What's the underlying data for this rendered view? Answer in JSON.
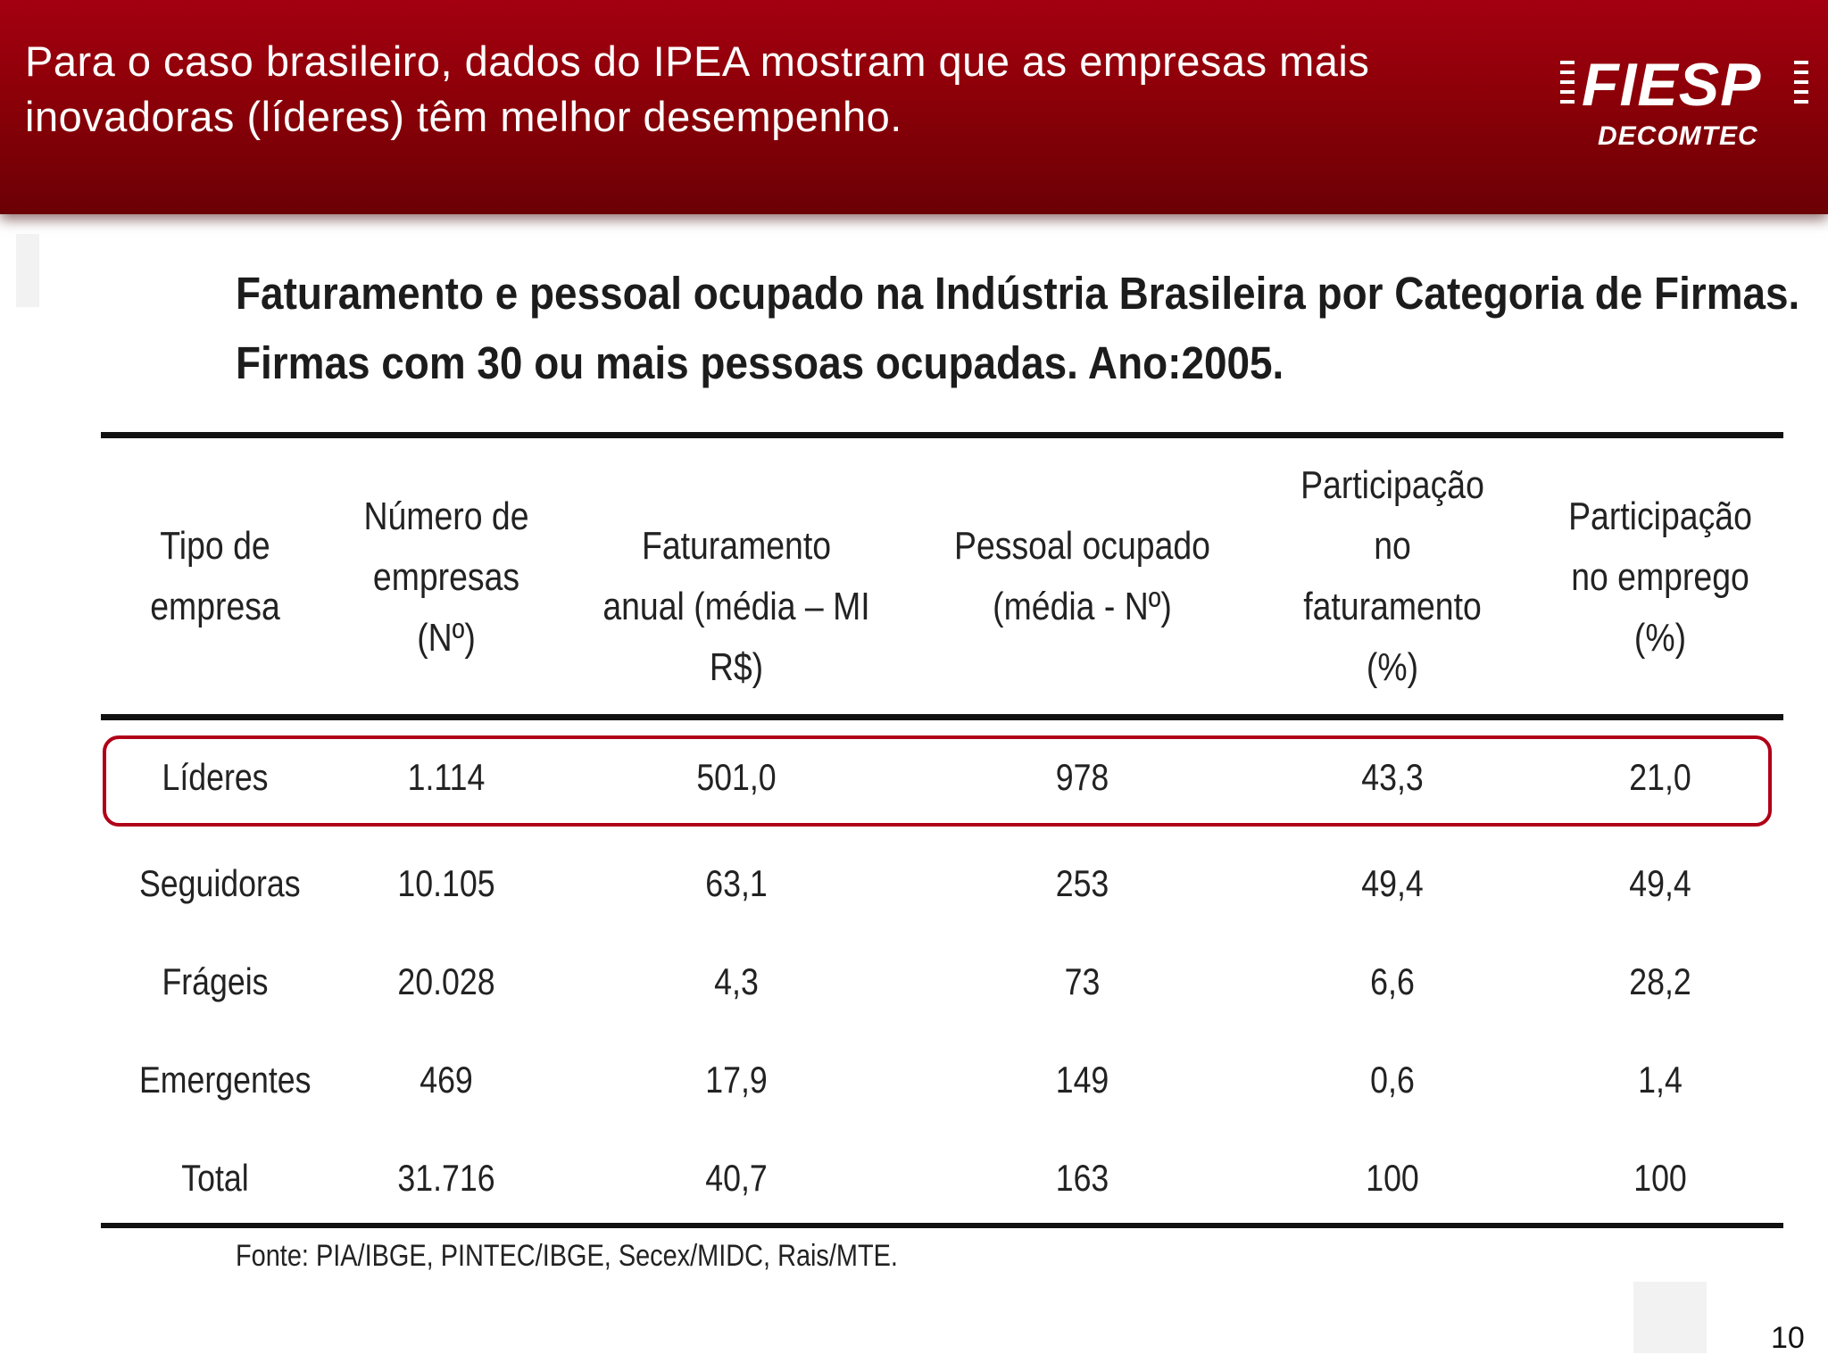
{
  "header": {
    "text": "Para o caso brasileiro, dados do IPEA mostram que as empresas mais inovadoras (líderes) têm melhor desempenho.",
    "logo_main": "FIESP",
    "logo_sub": "DECOMTEC"
  },
  "title": {
    "line1": "Faturamento e pessoal ocupado na Indústria Brasileira por Categoria de Firmas.",
    "line2": "Firmas com 30 ou mais pessoas ocupadas. Ano:2005."
  },
  "table": {
    "columns": [
      "Tipo de empresa",
      "Número de empresas (Nº)",
      "Faturamento anual (média – MI R$)",
      "Pessoal ocupado (média - Nº)",
      "Participação no faturamento (%)",
      "Participação no emprego (%)"
    ],
    "rows": [
      [
        "Líderes",
        "1.114",
        "501,0",
        "978",
        "43,3",
        "21,0"
      ],
      [
        "Seguidoras",
        "10.105",
        "63,1",
        "253",
        "49,4",
        "49,4"
      ],
      [
        "Frágeis",
        "20.028",
        "4,3",
        "73",
        "6,6",
        "28,2"
      ],
      [
        "Emergentes",
        "469",
        "17,9",
        "149",
        "0,6",
        "1,4"
      ],
      [
        "Total",
        "31.716",
        "40,7",
        "163",
        "100",
        "100"
      ]
    ]
  },
  "source": "Fonte: PIA/IBGE, PINTEC/IBGE, Secex/MIDC, Rais/MTE.",
  "page_number": "10",
  "colors": {
    "header_red": "#8c0008",
    "highlight_border": "#b00018"
  }
}
